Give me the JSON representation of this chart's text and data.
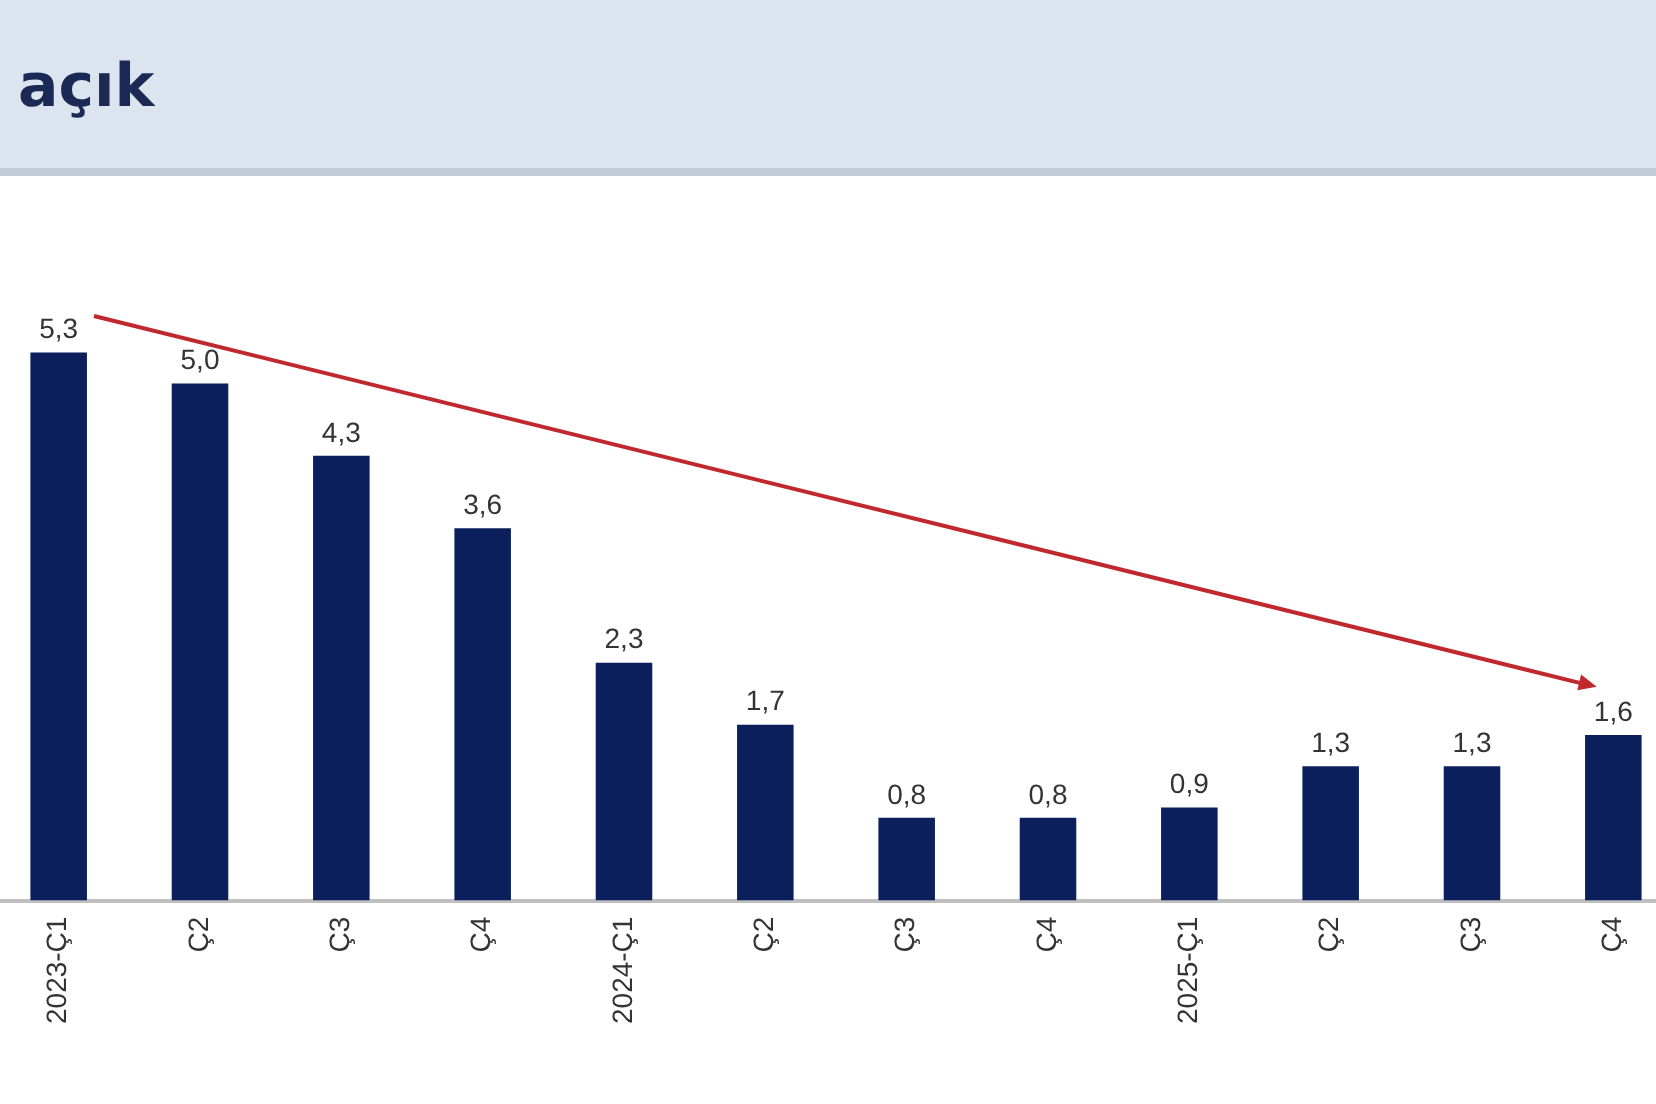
{
  "chart_data": {
    "type": "bar",
    "title": "açık",
    "categories": [
      "2023-Ç1",
      "Ç2",
      "Ç3",
      "Ç4",
      "2024-Ç1",
      "Ç2",
      "Ç3",
      "Ç4",
      "2025-Ç1",
      "Ç2",
      "Ç3",
      "Ç4"
    ],
    "values": [
      5.3,
      5.0,
      4.3,
      3.6,
      2.3,
      1.7,
      0.8,
      0.8,
      0.9,
      1.3,
      1.3,
      1.6
    ],
    "value_labels": [
      "5,3",
      "5,0",
      "4,3",
      "3,6",
      "2,3",
      "1,7",
      "0,8",
      "0,8",
      "0,9",
      "1,3",
      "1,3",
      "1,6"
    ],
    "color": "#0b1f5c",
    "legend": false,
    "tick_labels": "x"
  }
}
